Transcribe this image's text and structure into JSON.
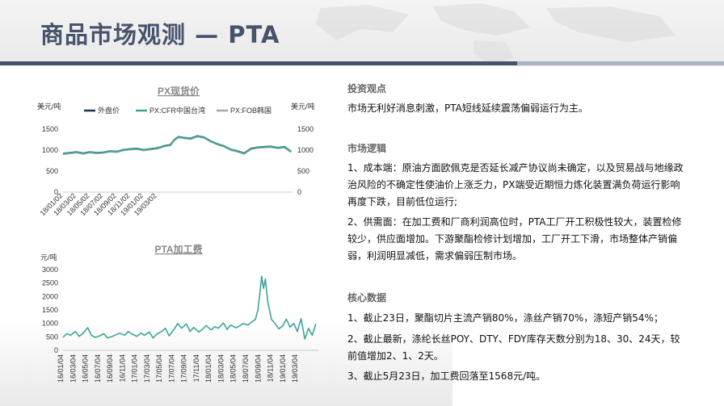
{
  "page": {
    "title": "商品市场观测 — PTA"
  },
  "right_panel": {
    "view_title": "投资观点",
    "view_text": "市场无利好消息刺激，PTA短线延续震荡偏弱运行为主。",
    "logic_title": "市场逻辑",
    "logic_1": "1、成本端：原油方面欧佩克是否延长减产协议尚未确定，以及贸易战与地缘政治风险的不确定性使油价上涨乏力，PX端受近期恒力炼化装置满负荷运行影响再度下跌，目前低位运行;",
    "logic_2": "2、供需面：在加工费和厂商利润高位时，PTA工厂开工积极性较大，装置检修较少，供应面增加。下游聚酯检修计划增加，工厂开工下滑，市场整体产销偏弱，利润明显减低，需求偏弱压制市场。",
    "core_title": "核心数据",
    "core_1": "1、截止23日，聚酯切片主流产销80%，涤丝产销70%，涤短产销54%；",
    "core_2": "2、截止最新，涤纶长丝POY、DTY、FDY库存天数分别为18、30、24天，较前值增加2、1、2天。",
    "core_3": "3、截止5月23日，加工费回落至1568元/吨。"
  },
  "colors": {
    "title": "#46536a",
    "series_dark": "#1f3040",
    "series_teal": "#3ea596",
    "series_gray": "#a6a6a6"
  },
  "chart_data": [
    {
      "type": "line",
      "title": "PX现货价",
      "ylabel": "美元/吨",
      "y2label": "美元/吨",
      "ylim": [
        0,
        1500
      ],
      "y_ticks": [
        0,
        500,
        1000,
        1500
      ],
      "x_tick_labels": [
        "18/01/02",
        "18/03/02",
        "18/05/02",
        "18/07/02",
        "18/09/02",
        "18/11/02",
        "19/01/02",
        "19/03/02"
      ],
      "x_range": [
        0,
        17.1
      ],
      "legend_position": "top",
      "series": [
        {
          "name": "外盘价",
          "color": "#1f3040",
          "axis": "left",
          "x": [
            0,
            0.5,
            1,
            1.5,
            2,
            2.5,
            3,
            3.5,
            4,
            4.5,
            5,
            5.5,
            6,
            6.5,
            7,
            7.5,
            8,
            8.3,
            8.6,
            9,
            9.5,
            10,
            10.5,
            11,
            11.5,
            12,
            12.5,
            13,
            13.5,
            14,
            14.5,
            15,
            15.5,
            16,
            16.5,
            17
          ],
          "values": [
            920,
            940,
            960,
            930,
            960,
            940,
            950,
            980,
            970,
            1010,
            1030,
            1040,
            1010,
            1030,
            1050,
            1100,
            1130,
            1250,
            1320,
            1300,
            1280,
            1340,
            1310,
            1220,
            1150,
            1100,
            1020,
            980,
            930,
            1040,
            1070,
            1080,
            1090,
            1060,
            1080,
            970
          ]
        },
        {
          "name": "PX:CFR中国台湾",
          "color": "#3ea596",
          "axis": "left",
          "x": [
            0,
            0.5,
            1,
            1.5,
            2,
            2.5,
            3,
            3.5,
            4,
            4.5,
            5,
            5.5,
            6,
            6.5,
            7,
            7.5,
            8,
            8.3,
            8.6,
            9,
            9.5,
            10,
            10.5,
            11,
            11.5,
            12,
            12.5,
            13,
            13.5,
            14,
            14.5,
            15,
            15.5,
            16,
            16.5,
            17
          ],
          "values": [
            915,
            935,
            955,
            925,
            955,
            935,
            945,
            975,
            965,
            1005,
            1025,
            1035,
            1005,
            1025,
            1045,
            1095,
            1125,
            1245,
            1315,
            1295,
            1275,
            1335,
            1305,
            1215,
            1145,
            1095,
            1015,
            975,
            925,
            1035,
            1065,
            1075,
            1085,
            1055,
            1075,
            965
          ]
        },
        {
          "name": "PX:FOB韩国",
          "color": "#a6a6a6",
          "axis": "right",
          "x": [
            0,
            0.5,
            1,
            1.5,
            2,
            2.5,
            3,
            3.5,
            4,
            4.5,
            5,
            5.5,
            6,
            6.5,
            7,
            7.5,
            8,
            8.3,
            8.6,
            9,
            9.5,
            10,
            10.5,
            11,
            11.5,
            12,
            12.5,
            13,
            13.5,
            14,
            14.5,
            15,
            15.5,
            16,
            16.5,
            17
          ],
          "values": [
            900,
            920,
            940,
            910,
            940,
            920,
            930,
            960,
            950,
            990,
            1010,
            1020,
            990,
            1010,
            1030,
            1080,
            1110,
            1230,
            1300,
            1280,
            1260,
            1320,
            1290,
            1200,
            1130,
            1080,
            1000,
            960,
            910,
            1020,
            1050,
            1060,
            1070,
            1040,
            1060,
            950
          ]
        }
      ]
    },
    {
      "type": "line",
      "title": "PTA加工费",
      "ylabel": "元/吨",
      "ylim": [
        0,
        3000
      ],
      "y_ticks": [
        0,
        500,
        1000,
        1500,
        2000,
        2500,
        3000
      ],
      "x_tick_labels": [
        "16/01/04",
        "16/03/04",
        "16/05/04",
        "16/07/04",
        "16/09/04",
        "16/11/04",
        "17/01/04",
        "17/03/04",
        "17/05/04",
        "17/07/04",
        "17/09/04",
        "17/11/04",
        "18/01/04",
        "18/03/04",
        "18/05/04",
        "18/07/04",
        "18/09/04",
        "18/11/04",
        "19/01/04",
        "19/03/04"
      ],
      "x_range": [
        0,
        20.7
      ],
      "series": [
        {
          "color": "#3ea596",
          "x": [
            0,
            0.3,
            0.6,
            1,
            1.3,
            1.6,
            2,
            2.3,
            2.6,
            3,
            3.3,
            3.6,
            4,
            4.3,
            4.6,
            5,
            5.3,
            5.6,
            6,
            6.3,
            6.6,
            7,
            7.3,
            7.6,
            8,
            8.3,
            8.6,
            9,
            9.3,
            9.6,
            10,
            10.3,
            10.6,
            11,
            11.3,
            11.6,
            12,
            12.3,
            12.6,
            13,
            13.3,
            13.6,
            14,
            14.3,
            14.6,
            15,
            15.3,
            15.6,
            15.8,
            15.95,
            16.1,
            16.25,
            16.4,
            16.6,
            16.9,
            17.2,
            17.5,
            17.8,
            18.1,
            18.4,
            18.7,
            19,
            19.3,
            19.6,
            19.9,
            20.2,
            20.5
          ],
          "values": [
            480,
            620,
            560,
            700,
            520,
            620,
            840,
            560,
            480,
            540,
            620,
            460,
            520,
            580,
            640,
            560,
            700,
            600,
            520,
            640,
            560,
            680,
            460,
            600,
            700,
            820,
            540,
            780,
            1000,
            820,
            980,
            700,
            850,
            680,
            780,
            920,
            760,
            880,
            820,
            1020,
            780,
            940,
            840,
            900,
            1000,
            940,
            1060,
            1150,
            1500,
            2100,
            2750,
            2300,
            2650,
            1800,
            1150,
            980,
            800,
            900,
            1160,
            860,
            1000,
            700,
            1180,
            420,
            820,
            560,
            980
          ]
        }
      ]
    }
  ]
}
